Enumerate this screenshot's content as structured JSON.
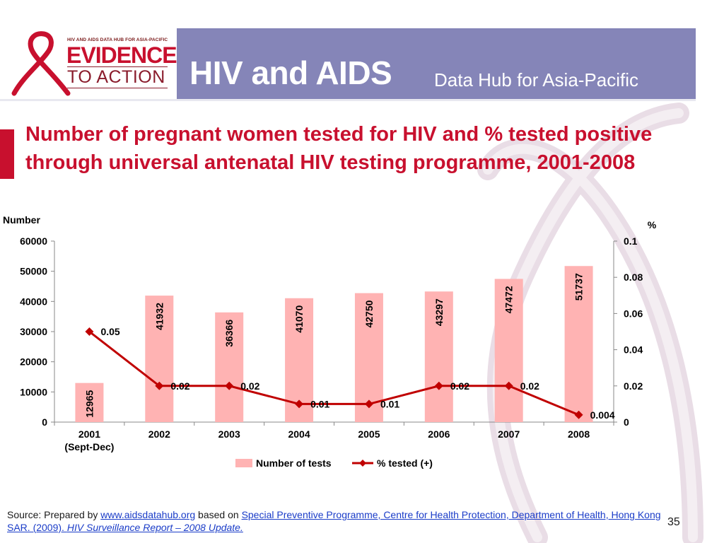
{
  "header": {
    "logo_small": "HIV AND AIDS DATA HUB FOR ASIA-PACIFIC",
    "logo_big": "EVIDENCE",
    "logo_sub": "TO ACTION",
    "title": "HIV and AIDS",
    "subtitle": "Data Hub for Asia-Pacific",
    "bar_color": "#8585b8"
  },
  "slide_title": "Number of pregnant women tested for HIV and % tested positive through universal antenatal HIV testing programme, 2001-2008",
  "chart_data": {
    "type": "bar",
    "categories": [
      "2001\n(Sept-Dec)",
      "2002",
      "2003",
      "2004",
      "2005",
      "2006",
      "2007",
      "2008"
    ],
    "series": [
      {
        "name": "Number of tests",
        "type": "bar",
        "axis": "left",
        "color": "#ffb3b3",
        "values": [
          12965,
          41932,
          36366,
          41070,
          42750,
          43297,
          47472,
          51737
        ]
      },
      {
        "name": "% tested (+)",
        "type": "line",
        "axis": "right",
        "color": "#c00000",
        "values": [
          0.05,
          0.02,
          0.02,
          0.01,
          0.01,
          0.02,
          0.02,
          0.004
        ]
      }
    ],
    "value_labels_bar": [
      "12965",
      "41932",
      "36366",
      "41070",
      "42750",
      "43297",
      "47472",
      "51737"
    ],
    "value_labels_line": [
      "0.05",
      "0.02",
      "0.02",
      "0.01",
      "0.01",
      "0.02",
      "0.02",
      "0.004"
    ],
    "ylabel": "Number",
    "ylabel_right": "%",
    "ylim": [
      0,
      60000
    ],
    "ylim_right": [
      0,
      0.1
    ],
    "yticks": [
      0,
      10000,
      20000,
      30000,
      40000,
      50000,
      60000
    ],
    "yticks_labels": [
      "0",
      "10000",
      "20000",
      "30000",
      "40000",
      "50000",
      "60000"
    ],
    "yticks_right": [
      0,
      0.02,
      0.04,
      0.06,
      0.08,
      0.1
    ],
    "yticks_right_labels": [
      "0",
      "0.02",
      "0.04",
      "0.06",
      "0.08",
      "0.1"
    ],
    "legend_placement": "bottom",
    "grid": false
  },
  "source": {
    "prefix": "Source: Prepared by ",
    "link1": "www.aidsdatahub.org",
    "middle": "  based on ",
    "link2": "Special Preventive Programme, Centre for Health Protection, Department of Health, Hong Kong SAR. (2009). ",
    "link2_italic": "HIV Surveillance Report – 2008 Update."
  },
  "slide_number": "35"
}
